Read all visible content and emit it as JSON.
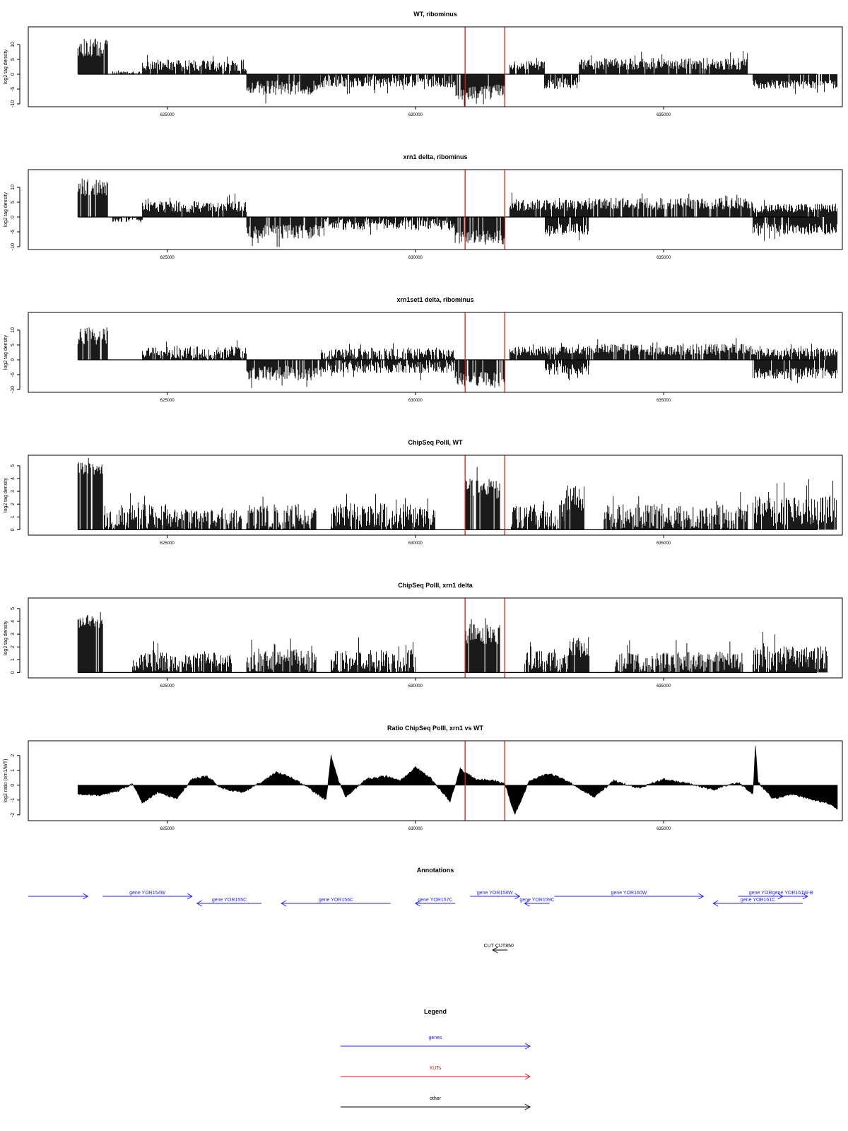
{
  "chart_data": [
    {
      "type": "bar",
      "title": "WT, ribominus",
      "ylabel": "log2 tag density",
      "ylim": [
        -10,
        15
      ],
      "yticks": [
        -10,
        -5,
        0,
        5,
        10
      ],
      "xlim": [
        622200,
        638600
      ],
      "xticks": [
        625000,
        630000,
        635000
      ],
      "marker_lines_x": [
        631000,
        631800
      ],
      "marker_color": "#e31a1c",
      "segments": [
        {
          "x": [
            623200,
            623800
          ],
          "sign": 1,
          "level": 9,
          "spread": 3
        },
        {
          "x": [
            623900,
            624500
          ],
          "sign": 1,
          "level": 0.5,
          "spread": 0.5
        },
        {
          "x": [
            624500,
            626600
          ],
          "sign": 1,
          "level": 3,
          "spread": 2
        },
        {
          "x": [
            626600,
            628100
          ],
          "sign": -1,
          "level": 4.5,
          "spread": 2.5
        },
        {
          "x": [
            628100,
            630800
          ],
          "sign": -1,
          "level": 2.5,
          "spread": 2
        },
        {
          "x": [
            630800,
            631800
          ],
          "sign": -1,
          "level": 6,
          "spread": 2.5
        },
        {
          "x": [
            631900,
            632600
          ],
          "sign": 1,
          "level": 3,
          "spread": 1.5
        },
        {
          "x": [
            632600,
            633300
          ],
          "sign": -1,
          "level": 3,
          "spread": 2
        },
        {
          "x": [
            633300,
            636700
          ],
          "sign": 1,
          "level": 3.5,
          "spread": 2
        },
        {
          "x": [
            636800,
            638500
          ],
          "sign": -1,
          "level": 3.5,
          "spread": 1.5
        }
      ]
    },
    {
      "type": "bar",
      "title": "xrn1 delta, ribominus",
      "ylabel": "log2 tag density",
      "ylim": [
        -10,
        15
      ],
      "yticks": [
        -10,
        -5,
        0,
        5,
        10
      ],
      "xlim": [
        622200,
        638600
      ],
      "xticks": [
        625000,
        630000,
        635000
      ],
      "marker_lines_x": [
        631000,
        631800
      ],
      "marker_color": "#e31a1c",
      "segments": [
        {
          "x": [
            623200,
            623800
          ],
          "sign": 1,
          "level": 10,
          "spread": 3
        },
        {
          "x": [
            623900,
            624500
          ],
          "sign": -1,
          "level": 1,
          "spread": 1
        },
        {
          "x": [
            624500,
            626600
          ],
          "sign": 1,
          "level": 3.5,
          "spread": 2
        },
        {
          "x": [
            626600,
            628100
          ],
          "sign": -1,
          "level": 5,
          "spread": 2.5
        },
        {
          "x": [
            628100,
            630800
          ],
          "sign": -1,
          "level": 2.5,
          "spread": 2
        },
        {
          "x": [
            630800,
            631800
          ],
          "sign": -1,
          "level": 7,
          "spread": 2.5
        },
        {
          "x": [
            631900,
            633500
          ],
          "sign": 1,
          "level": 4,
          "spread": 2
        },
        {
          "x": [
            632600,
            633500
          ],
          "sign": -1,
          "level": 4,
          "spread": 2
        },
        {
          "x": [
            633500,
            636800
          ],
          "sign": 1,
          "level": 4.5,
          "spread": 2
        },
        {
          "x": [
            636800,
            638500
          ],
          "sign": 1,
          "level": 3,
          "spread": 1.5
        },
        {
          "x": [
            636800,
            638500
          ],
          "sign": -1,
          "level": 4,
          "spread": 2
        }
      ]
    },
    {
      "type": "bar",
      "title": "xrn1set1 delta, ribominus",
      "ylabel": "log2 tag density",
      "ylim": [
        -10,
        15
      ],
      "yticks": [
        -10,
        -5,
        0,
        5,
        10
      ],
      "xlim": [
        622200,
        638600
      ],
      "xticks": [
        625000,
        630000,
        635000
      ],
      "marker_lines_x": [
        631000,
        631800
      ],
      "marker_color": "#e31a1c",
      "segments": [
        {
          "x": [
            623200,
            623800
          ],
          "sign": 1,
          "level": 8,
          "spread": 3
        },
        {
          "x": [
            624500,
            626600
          ],
          "sign": 1,
          "level": 2.5,
          "spread": 2
        },
        {
          "x": [
            626600,
            628100
          ],
          "sign": -1,
          "level": 4.5,
          "spread": 2.5
        },
        {
          "x": [
            628100,
            630800
          ],
          "sign": 1,
          "level": 2,
          "spread": 2
        },
        {
          "x": [
            628100,
            630800
          ],
          "sign": -1,
          "level": 2.5,
          "spread": 2
        },
        {
          "x": [
            630800,
            631800
          ],
          "sign": -1,
          "level": 6.5,
          "spread": 2.5
        },
        {
          "x": [
            631900,
            633500
          ],
          "sign": 1,
          "level": 3,
          "spread": 1.5
        },
        {
          "x": [
            632600,
            633500
          ],
          "sign": -1,
          "level": 3,
          "spread": 2
        },
        {
          "x": [
            633500,
            636800
          ],
          "sign": 1,
          "level": 3.5,
          "spread": 2
        },
        {
          "x": [
            636800,
            638500
          ],
          "sign": 1,
          "level": 2.5,
          "spread": 1.5
        },
        {
          "x": [
            636800,
            638500
          ],
          "sign": -1,
          "level": 4.5,
          "spread": 2
        }
      ]
    },
    {
      "type": "bar",
      "title": "ChipSeq PolII, WT",
      "ylabel": "log2 tag density",
      "ylim": [
        -0.2,
        5.6
      ],
      "yticks": [
        0,
        1,
        2,
        3,
        4,
        5
      ],
      "xlim": [
        622200,
        638600
      ],
      "xticks": [
        625000,
        630000,
        635000
      ],
      "marker_lines_x": [
        631000,
        631800
      ],
      "marker_color": "#e31a1c",
      "segments": [
        {
          "x": [
            623200,
            623700
          ],
          "sign": 1,
          "level": 4.8,
          "spread": 0.5
        },
        {
          "x": [
            623700,
            625000
          ],
          "sign": 1,
          "level": 1,
          "spread": 1
        },
        {
          "x": [
            625000,
            626500
          ],
          "sign": 1,
          "level": 0.8,
          "spread": 0.8
        },
        {
          "x": [
            626600,
            628000
          ],
          "sign": 1,
          "level": 1,
          "spread": 1
        },
        {
          "x": [
            628300,
            630400
          ],
          "sign": 1,
          "level": 1.1,
          "spread": 1
        },
        {
          "x": [
            631000,
            631700
          ],
          "sign": 1,
          "level": 3.2,
          "spread": 0.8
        },
        {
          "x": [
            631900,
            633000
          ],
          "sign": 1,
          "level": 1,
          "spread": 1
        },
        {
          "x": [
            633000,
            633400
          ],
          "sign": 1,
          "level": 2.5,
          "spread": 1
        },
        {
          "x": [
            633800,
            636700
          ],
          "sign": 1,
          "level": 1,
          "spread": 1
        },
        {
          "x": [
            636800,
            638500
          ],
          "sign": 1,
          "level": 1.5,
          "spread": 1.2
        }
      ]
    },
    {
      "type": "bar",
      "title": "ChipSeq PolII, xrn1 delta",
      "ylabel": "log2 tag density",
      "ylim": [
        -0.2,
        5.6
      ],
      "yticks": [
        0,
        1,
        2,
        3,
        4,
        5
      ],
      "xlim": [
        622200,
        638600
      ],
      "xticks": [
        625000,
        630000,
        635000
      ],
      "marker_lines_x": [
        631000,
        631800
      ],
      "marker_color": "#e31a1c",
      "segments": [
        {
          "x": [
            623200,
            623700
          ],
          "sign": 1,
          "level": 4,
          "spread": 0.5
        },
        {
          "x": [
            624300,
            626300
          ],
          "sign": 1,
          "level": 0.8,
          "spread": 0.8
        },
        {
          "x": [
            626600,
            628000
          ],
          "sign": 1,
          "level": 0.9,
          "spread": 0.9
        },
        {
          "x": [
            628300,
            630000
          ],
          "sign": 1,
          "level": 0.9,
          "spread": 0.9
        },
        {
          "x": [
            631000,
            631700
          ],
          "sign": 1,
          "level": 3,
          "spread": 0.8
        },
        {
          "x": [
            632200,
            633100
          ],
          "sign": 1,
          "level": 0.9,
          "spread": 0.9
        },
        {
          "x": [
            633100,
            633500
          ],
          "sign": 1,
          "level": 2,
          "spread": 0.8
        },
        {
          "x": [
            634000,
            636600
          ],
          "sign": 1,
          "level": 0.8,
          "spread": 0.8
        },
        {
          "x": [
            636800,
            638300
          ],
          "sign": 1,
          "level": 1.1,
          "spread": 1
        }
      ]
    },
    {
      "type": "area",
      "title": "Ratio ChipSeq PolII, xrn1 vs WT",
      "ylabel": "log2 ratio (xrn1/WT)",
      "ylim": [
        -2.2,
        2.8
      ],
      "yticks": [
        -2,
        -1,
        0,
        1,
        2
      ],
      "xlim": [
        622200,
        638600
      ],
      "xticks": [
        625000,
        630000,
        635000
      ],
      "marker_lines_x": [
        631000,
        631800
      ],
      "marker_color": "#e31a1c",
      "x": [
        623200,
        623600,
        624000,
        624300,
        624500,
        624800,
        625200,
        625500,
        625800,
        626100,
        626500,
        626900,
        627200,
        627500,
        627900,
        628200,
        628300,
        628450,
        628600,
        629000,
        629400,
        629700,
        630000,
        630300,
        630500,
        630700,
        630900,
        631200,
        631600,
        631800,
        632000,
        632300,
        632700,
        633000,
        633300,
        633600,
        634000,
        634500,
        635000,
        635500,
        636000,
        636500,
        636800,
        636850,
        636900,
        637200,
        637600,
        638000,
        638300,
        638500
      ],
      "values": [
        -0.6,
        -0.7,
        -0.4,
        0.1,
        -1.2,
        -0.5,
        -0.9,
        0.4,
        0.6,
        -0.2,
        -0.5,
        0.2,
        0.9,
        0.5,
        -0.3,
        -1.0,
        2.0,
        0.3,
        -0.8,
        0.4,
        0.6,
        0.3,
        1.2,
        0.5,
        -0.3,
        -1.1,
        1.1,
        0.4,
        0.3,
        0.1,
        -2.0,
        0.3,
        0.8,
        0.4,
        -0.2,
        -0.8,
        0.3,
        -0.2,
        0.4,
        0.1,
        -0.3,
        0.2,
        -0.6,
        2.7,
        0.2,
        -0.9,
        -0.6,
        -1.0,
        -1.2,
        -1.6
      ]
    }
  ],
  "annotations": {
    "title": "Annotations",
    "genes": [
      {
        "label": "",
        "x": [
          622200,
          623400
        ],
        "strand": "+",
        "row": 0
      },
      {
        "label": "gene YOR154W",
        "x": [
          623700,
          625500
        ],
        "strand": "+",
        "row": 0
      },
      {
        "label": "gene YOR155C",
        "x": [
          625600,
          626900
        ],
        "strand": "-",
        "row": 1
      },
      {
        "label": "gene YOR156C",
        "x": [
          627300,
          629500
        ],
        "strand": "-",
        "row": 1
      },
      {
        "label": "gene YOR157C",
        "x": [
          630000,
          630800
        ],
        "strand": "-",
        "row": 1
      },
      {
        "label": "gene YOR158W",
        "x": [
          631100,
          632100
        ],
        "strand": "+",
        "row": 0
      },
      {
        "label": "gene YOR159C",
        "x": [
          632200,
          632700
        ],
        "strand": "-",
        "row": 1
      },
      {
        "label": "gene YOR160W",
        "x": [
          632800,
          635800
        ],
        "strand": "+",
        "row": 0
      },
      {
        "label": "gene YOR",
        "x": [
          636500,
          637400
        ],
        "strand": "+",
        "row": 0
      },
      {
        "label": "gene YOR161W-B",
        "x": [
          637300,
          637900
        ],
        "strand": "+",
        "row": 0
      },
      {
        "label": "gene YOR161C",
        "x": [
          636000,
          637800
        ],
        "strand": "-",
        "row": 1
      }
    ],
    "other": [
      {
        "label": "CUT CUT850",
        "x": [
          631300,
          631600
        ],
        "strand": "-"
      }
    ]
  },
  "legend": {
    "title": "Legend",
    "items": [
      {
        "label": "genes",
        "color": "#1f1fff"
      },
      {
        "label": "XUTs",
        "color": "#e31a1c"
      },
      {
        "label": "other",
        "color": "#000000"
      }
    ]
  }
}
